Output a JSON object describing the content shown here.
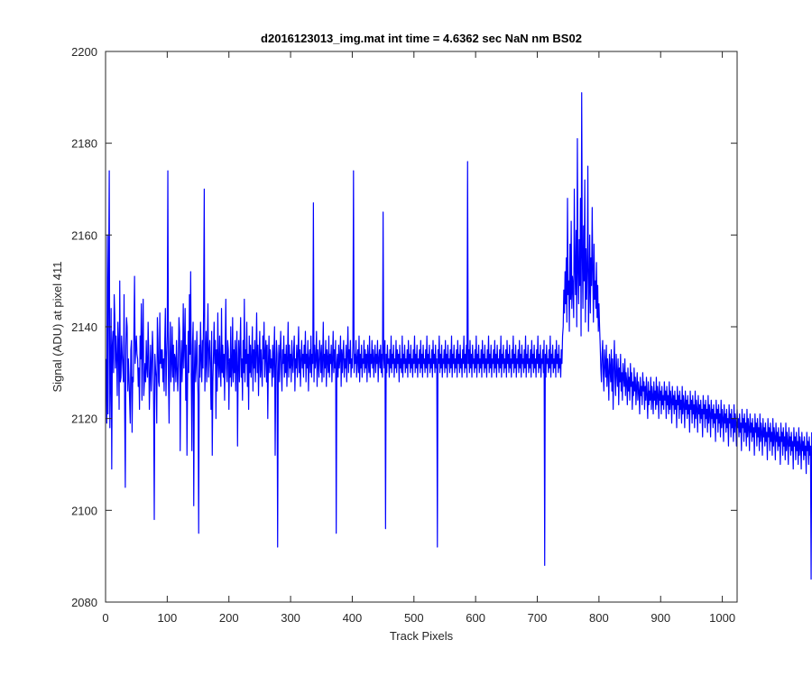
{
  "chart_data": {
    "type": "line",
    "title": "d2016123013_img.mat int time = 4.6362 sec  NaN nm BS02",
    "xlabel": "Track Pixels",
    "ylabel": "Signal (ADU) at pixel 411",
    "xlim": [
      0,
      1024
    ],
    "ylim": [
      2080,
      2200
    ],
    "xticks": [
      0,
      100,
      200,
      300,
      400,
      500,
      600,
      700,
      800,
      900,
      1000
    ],
    "yticks": [
      2080,
      2100,
      2120,
      2140,
      2160,
      2180,
      2200
    ],
    "grid": false,
    "line_color": "#0000ff",
    "series": [
      {
        "x_start": 1,
        "x_step": 1,
        "values": [
          2133,
          2119,
          2160,
          2121,
          2151,
          2174,
          2118,
          2128,
          2144,
          2109,
          2136,
          2139,
          2130,
          2147,
          2142,
          2131,
          2138,
          2133,
          2125,
          2141,
          2136,
          2122,
          2150,
          2128,
          2129,
          2138,
          2134,
          2131,
          2128,
          2147,
          2122,
          2105,
          2136,
          2142,
          2140,
          2126,
          2133,
          2129,
          2124,
          2119,
          2135,
          2137,
          2117,
          2129,
          2128,
          2139,
          2151,
          2132,
          2135,
          2138,
          2134,
          2133,
          2127,
          2131,
          2122,
          2138,
          2133,
          2145,
          2124,
          2137,
          2146,
          2125,
          2128,
          2132,
          2128,
          2137,
          2131,
          2129,
          2141,
          2134,
          2122,
          2129,
          2136,
          2126,
          2131,
          2139,
          2134,
          2123,
          2098,
          2134,
          2131,
          2129,
          2119,
          2142,
          2137,
          2128,
          2127,
          2143,
          2132,
          2135,
          2131,
          2135,
          2128,
          2133,
          2126,
          2137,
          2144,
          2125,
          2133,
          2138,
          2174,
          2129,
          2119,
          2134,
          2141,
          2128,
          2132,
          2140,
          2129,
          2136,
          2126,
          2134,
          2133,
          2128,
          2137,
          2131,
          2126,
          2132,
          2142,
          2139,
          2113,
          2131,
          2137,
          2128,
          2133,
          2145,
          2131,
          2137,
          2144,
          2124,
          2136,
          2112,
          2128,
          2139,
          2130,
          2147,
          2134,
          2152,
          2129,
          2113,
          2136,
          2141,
          2101,
          2130,
          2137,
          2128,
          2132,
          2139,
          2131,
          2125,
          2095,
          2136,
          2129,
          2141,
          2133,
          2128,
          2137,
          2131,
          2144,
          2170,
          2126,
          2133,
          2139,
          2128,
          2136,
          2145,
          2129,
          2134,
          2137,
          2131,
          2122,
          2139,
          2112,
          2128,
          2134,
          2141,
          2132,
          2137,
          2120,
          2135,
          2126,
          2143,
          2132,
          2129,
          2138,
          2131,
          2127,
          2144,
          2130,
          2136,
          2129,
          2134,
          2124,
          2136,
          2146,
          2131,
          2128,
          2137,
          2135,
          2122,
          2133,
          2129,
          2140,
          2127,
          2131,
          2142,
          2128,
          2135,
          2130,
          2137,
          2126,
          2134,
          2139,
          2114,
          2131,
          2137,
          2128,
          2135,
          2142,
          2129,
          2133,
          2124,
          2137,
          2130,
          2146,
          2128,
          2135,
          2132,
          2141,
          2127,
          2134,
          2122,
          2138,
          2130,
          2136,
          2129,
          2133,
          2140,
          2126,
          2135,
          2131,
          2137,
          2128,
          2134,
          2143,
          2130,
          2136,
          2125,
          2133,
          2139,
          2129,
          2135,
          2131,
          2127,
          2138,
          2133,
          2141,
          2129,
          2134,
          2137,
          2128,
          2136,
          2120,
          2132,
          2138,
          2130,
          2135,
          2131,
          2133,
          2127,
          2136,
          2129,
          2134,
          2140,
          2112,
          2131,
          2137,
          2134,
          2092,
          2130,
          2136,
          2128,
          2134,
          2139,
          2131,
          2126,
          2135,
          2132,
          2138,
          2129,
          2134,
          2130,
          2136,
          2127,
          2133,
          2141,
          2129,
          2136,
          2131,
          2134,
          2128,
          2137,
          2132,
          2130,
          2135,
          2138,
          2126,
          2133,
          2131,
          2136,
          2129,
          2134,
          2140,
          2130,
          2135,
          2127,
          2133,
          2137,
          2131,
          2134,
          2129,
          2136,
          2132,
          2139,
          2128,
          2134,
          2131,
          2137,
          2126,
          2133,
          2135,
          2130,
          2138,
          2129,
          2134,
          2132,
          2167,
          2128,
          2136,
          2131,
          2133,
          2139,
          2127,
          2135,
          2132,
          2129,
          2137,
          2134,
          2130,
          2136,
          2128,
          2133,
          2141,
          2129,
          2134,
          2131,
          2137,
          2127,
          2135,
          2133,
          2130,
          2138,
          2129,
          2134,
          2132,
          2136,
          2128,
          2133,
          2139,
          2130,
          2135,
          2131,
          2137,
          2095,
          2132,
          2134,
          2129,
          2136,
          2131,
          2133,
          2138,
          2127,
          2135,
          2130,
          2134,
          2137,
          2129,
          2133,
          2131,
          2136,
          2128,
          2134,
          2140,
          2130,
          2135,
          2132,
          2137,
          2129,
          2133,
          2131,
          2136,
          2174,
          2130,
          2134,
          2132,
          2137,
          2129,
          2133,
          2135,
          2130,
          2138,
          2128,
          2134,
          2131,
          2136,
          2129,
          2133,
          2132,
          2137,
          2130,
          2135,
          2131,
          2134,
          2128,
          2136,
          2133,
          2130,
          2138,
          2129,
          2134,
          2132,
          2137,
          2131,
          2135,
          2129,
          2133,
          2136,
          2130,
          2134,
          2132,
          2137,
          2128,
          2133,
          2135,
          2131,
          2136,
          2130,
          2134,
          2129,
          2165,
          2133,
          2131,
          2137,
          2096,
          2134,
          2130,
          2136,
          2132,
          2133,
          2129,
          2135,
          2131,
          2138,
          2130,
          2134,
          2132,
          2136,
          2129,
          2133,
          2131,
          2137,
          2130,
          2135,
          2132,
          2134,
          2128,
          2136,
          2131,
          2133,
          2130,
          2138,
          2129,
          2134,
          2132,
          2136,
          2130,
          2133,
          2131,
          2135,
          2129,
          2137,
          2132,
          2134,
          2130,
          2136,
          2131,
          2133,
          2129,
          2135,
          2132,
          2138,
          2130,
          2134,
          2131,
          2136,
          2129,
          2133,
          2132,
          2135,
          2130,
          2137,
          2131,
          2134,
          2129,
          2136,
          2132,
          2133,
          2130,
          2135,
          2131,
          2138,
          2129,
          2134,
          2132,
          2136,
          2130,
          2133,
          2131,
          2135,
          2129,
          2137,
          2132,
          2134,
          2130,
          2136,
          2131,
          2133,
          2092,
          2135,
          2132,
          2138,
          2130,
          2134,
          2131,
          2136,
          2129,
          2133,
          2132,
          2135,
          2130,
          2137,
          2131,
          2134,
          2129,
          2136,
          2132,
          2133,
          2130,
          2135,
          2131,
          2138,
          2129,
          2134,
          2132,
          2136,
          2130,
          2133,
          2131,
          2135,
          2129,
          2137,
          2132,
          2134,
          2130,
          2136,
          2131,
          2133,
          2129,
          2135,
          2132,
          2138,
          2130,
          2134,
          2131,
          2136,
          2129,
          2176,
          2132,
          2135,
          2130,
          2137,
          2131,
          2134,
          2129,
          2136,
          2132,
          2133,
          2130,
          2135,
          2131,
          2138,
          2129,
          2134,
          2132,
          2136,
          2130,
          2133,
          2131,
          2135,
          2129,
          2137,
          2132,
          2134,
          2130,
          2136,
          2131,
          2133,
          2129,
          2135,
          2132,
          2138,
          2130,
          2134,
          2131,
          2136,
          2129,
          2133,
          2132,
          2135,
          2130,
          2137,
          2131,
          2134,
          2129,
          2136,
          2132,
          2133,
          2130,
          2135,
          2131,
          2138,
          2129,
          2134,
          2132,
          2136,
          2130,
          2133,
          2131,
          2135,
          2129,
          2137,
          2132,
          2134,
          2130,
          2136,
          2131,
          2133,
          2129,
          2135,
          2132,
          2138,
          2130,
          2134,
          2131,
          2136,
          2129,
          2133,
          2132,
          2135,
          2130,
          2137,
          2131,
          2134,
          2129,
          2136,
          2132,
          2133,
          2130,
          2135,
          2131,
          2138,
          2129,
          2134,
          2132,
          2136,
          2130,
          2133,
          2131,
          2135,
          2129,
          2137,
          2132,
          2134,
          2130,
          2136,
          2131,
          2133,
          2129,
          2135,
          2132,
          2138,
          2130,
          2134,
          2131,
          2136,
          2129,
          2133,
          2132,
          2135,
          2130,
          2137,
          2088,
          2134,
          2129,
          2136,
          2132,
          2133,
          2130,
          2135,
          2131,
          2138,
          2129,
          2134,
          2132,
          2136,
          2130,
          2133,
          2131,
          2135,
          2129,
          2137,
          2132,
          2134,
          2130,
          2136,
          2131,
          2133,
          2129,
          2135,
          2132,
          2138,
          2140,
          2148,
          2143,
          2152,
          2145,
          2155,
          2141,
          2168,
          2147,
          2150,
          2139,
          2158,
          2146,
          2163,
          2144,
          2151,
          2149,
          2142,
          2170,
          2153,
          2147,
          2161,
          2140,
          2181,
          2152,
          2145,
          2159,
          2149,
          2168,
          2138,
          2191,
          2156,
          2144,
          2162,
          2150,
          2172,
          2141,
          2157,
          2146,
          2153,
          2175,
          2139,
          2148,
          2160,
          2143,
          2155,
          2149,
          2166,
          2152,
          2141,
          2158,
          2146,
          2150,
          2144,
          2154,
          2142,
          2149,
          2139,
          2145,
          2140,
          2136,
          2131,
          2128,
          2134,
          2137,
          2130,
          2126,
          2135,
          2132,
          2129,
          2136,
          2127,
          2133,
          2130,
          2124,
          2134,
          2131,
          2128,
          2135,
          2126,
          2133,
          2122,
          2131,
          2137,
          2129,
          2125,
          2134,
          2130,
          2127,
          2133,
          2123,
          2131,
          2128,
          2134,
          2126,
          2130,
          2124,
          2132,
          2129,
          2127,
          2133,
          2125,
          2130,
          2128,
          2123,
          2131,
          2126,
          2129,
          2124,
          2132,
          2127,
          2130,
          2122,
          2128,
          2125,
          2131,
          2126,
          2129,
          2123,
          2127,
          2130,
          2124,
          2128,
          2126,
          2121,
          2129,
          2125,
          2127,
          2123,
          2130,
          2126,
          2128,
          2122,
          2127,
          2124,
          2129,
          2125,
          2120,
          2128,
          2123,
          2126,
          2124,
          2129,
          2122,
          2127,
          2125,
          2121,
          2128,
          2124,
          2126,
          2122,
          2129,
          2123,
          2127,
          2125,
          2120,
          2128,
          2124,
          2126,
          2121,
          2127,
          2123,
          2125,
          2122,
          2128,
          2124,
          2126,
          2120,
          2127,
          2123,
          2125,
          2121,
          2128,
          2122,
          2126,
          2124,
          2119,
          2127,
          2123,
          2125,
          2121,
          2126,
          2122,
          2124,
          2118,
          2127,
          2123,
          2125,
          2120,
          2126,
          2122,
          2124,
          2119,
          2127,
          2121,
          2125,
          2123,
          2118,
          2126,
          2122,
          2124,
          2120,
          2125,
          2121,
          2123,
          2117,
          2126,
          2122,
          2124,
          2119,
          2125,
          2121,
          2123,
          2118,
          2126,
          2120,
          2124,
          2122,
          2117,
          2125,
          2121,
          2123,
          2119,
          2124,
          2120,
          2122,
          2116,
          2125,
          2121,
          2123,
          2118,
          2124,
          2120,
          2122,
          2117,
          2125,
          2119,
          2123,
          2121,
          2116,
          2124,
          2120,
          2122,
          2118,
          2123,
          2119,
          2121,
          2115,
          2124,
          2120,
          2122,
          2117,
          2123,
          2119,
          2121,
          2116,
          2124,
          2118,
          2122,
          2120,
          2115,
          2123,
          2119,
          2121,
          2117,
          2122,
          2118,
          2120,
          2114,
          2123,
          2119,
          2121,
          2116,
          2122,
          2118,
          2120,
          2115,
          2123,
          2117,
          2121,
          2119,
          2114,
          2122,
          2118,
          2120,
          2116,
          2121,
          2117,
          2119,
          2113,
          2122,
          2118,
          2120,
          2115,
          2121,
          2117,
          2119,
          2114,
          2122,
          2116,
          2120,
          2118,
          2113,
          2121,
          2117,
          2119,
          2115,
          2120,
          2116,
          2118,
          2112,
          2121,
          2117,
          2119,
          2114,
          2120,
          2116,
          2118,
          2113,
          2121,
          2115,
          2119,
          2117,
          2112,
          2120,
          2116,
          2118,
          2114,
          2119,
          2115,
          2117,
          2111,
          2120,
          2116,
          2118,
          2113,
          2119,
          2115,
          2117,
          2112,
          2120,
          2114,
          2118,
          2116,
          2111,
          2119,
          2115,
          2117,
          2113,
          2118,
          2114,
          2116,
          2110,
          2119,
          2115,
          2117,
          2112,
          2118,
          2114,
          2116,
          2111,
          2119,
          2113,
          2117,
          2115,
          2110,
          2118,
          2114,
          2116,
          2112,
          2117,
          2113,
          2115,
          2109,
          2118,
          2114,
          2116,
          2111,
          2117,
          2113,
          2115,
          2110,
          2118,
          2112,
          2116,
          2114,
          2109,
          2117,
          2113,
          2115,
          2111,
          2116,
          2112,
          2114,
          2108,
          2117,
          2113,
          2115,
          2110,
          2116,
          2112,
          2114,
          2085,
          2117
        ]
      }
    ]
  }
}
